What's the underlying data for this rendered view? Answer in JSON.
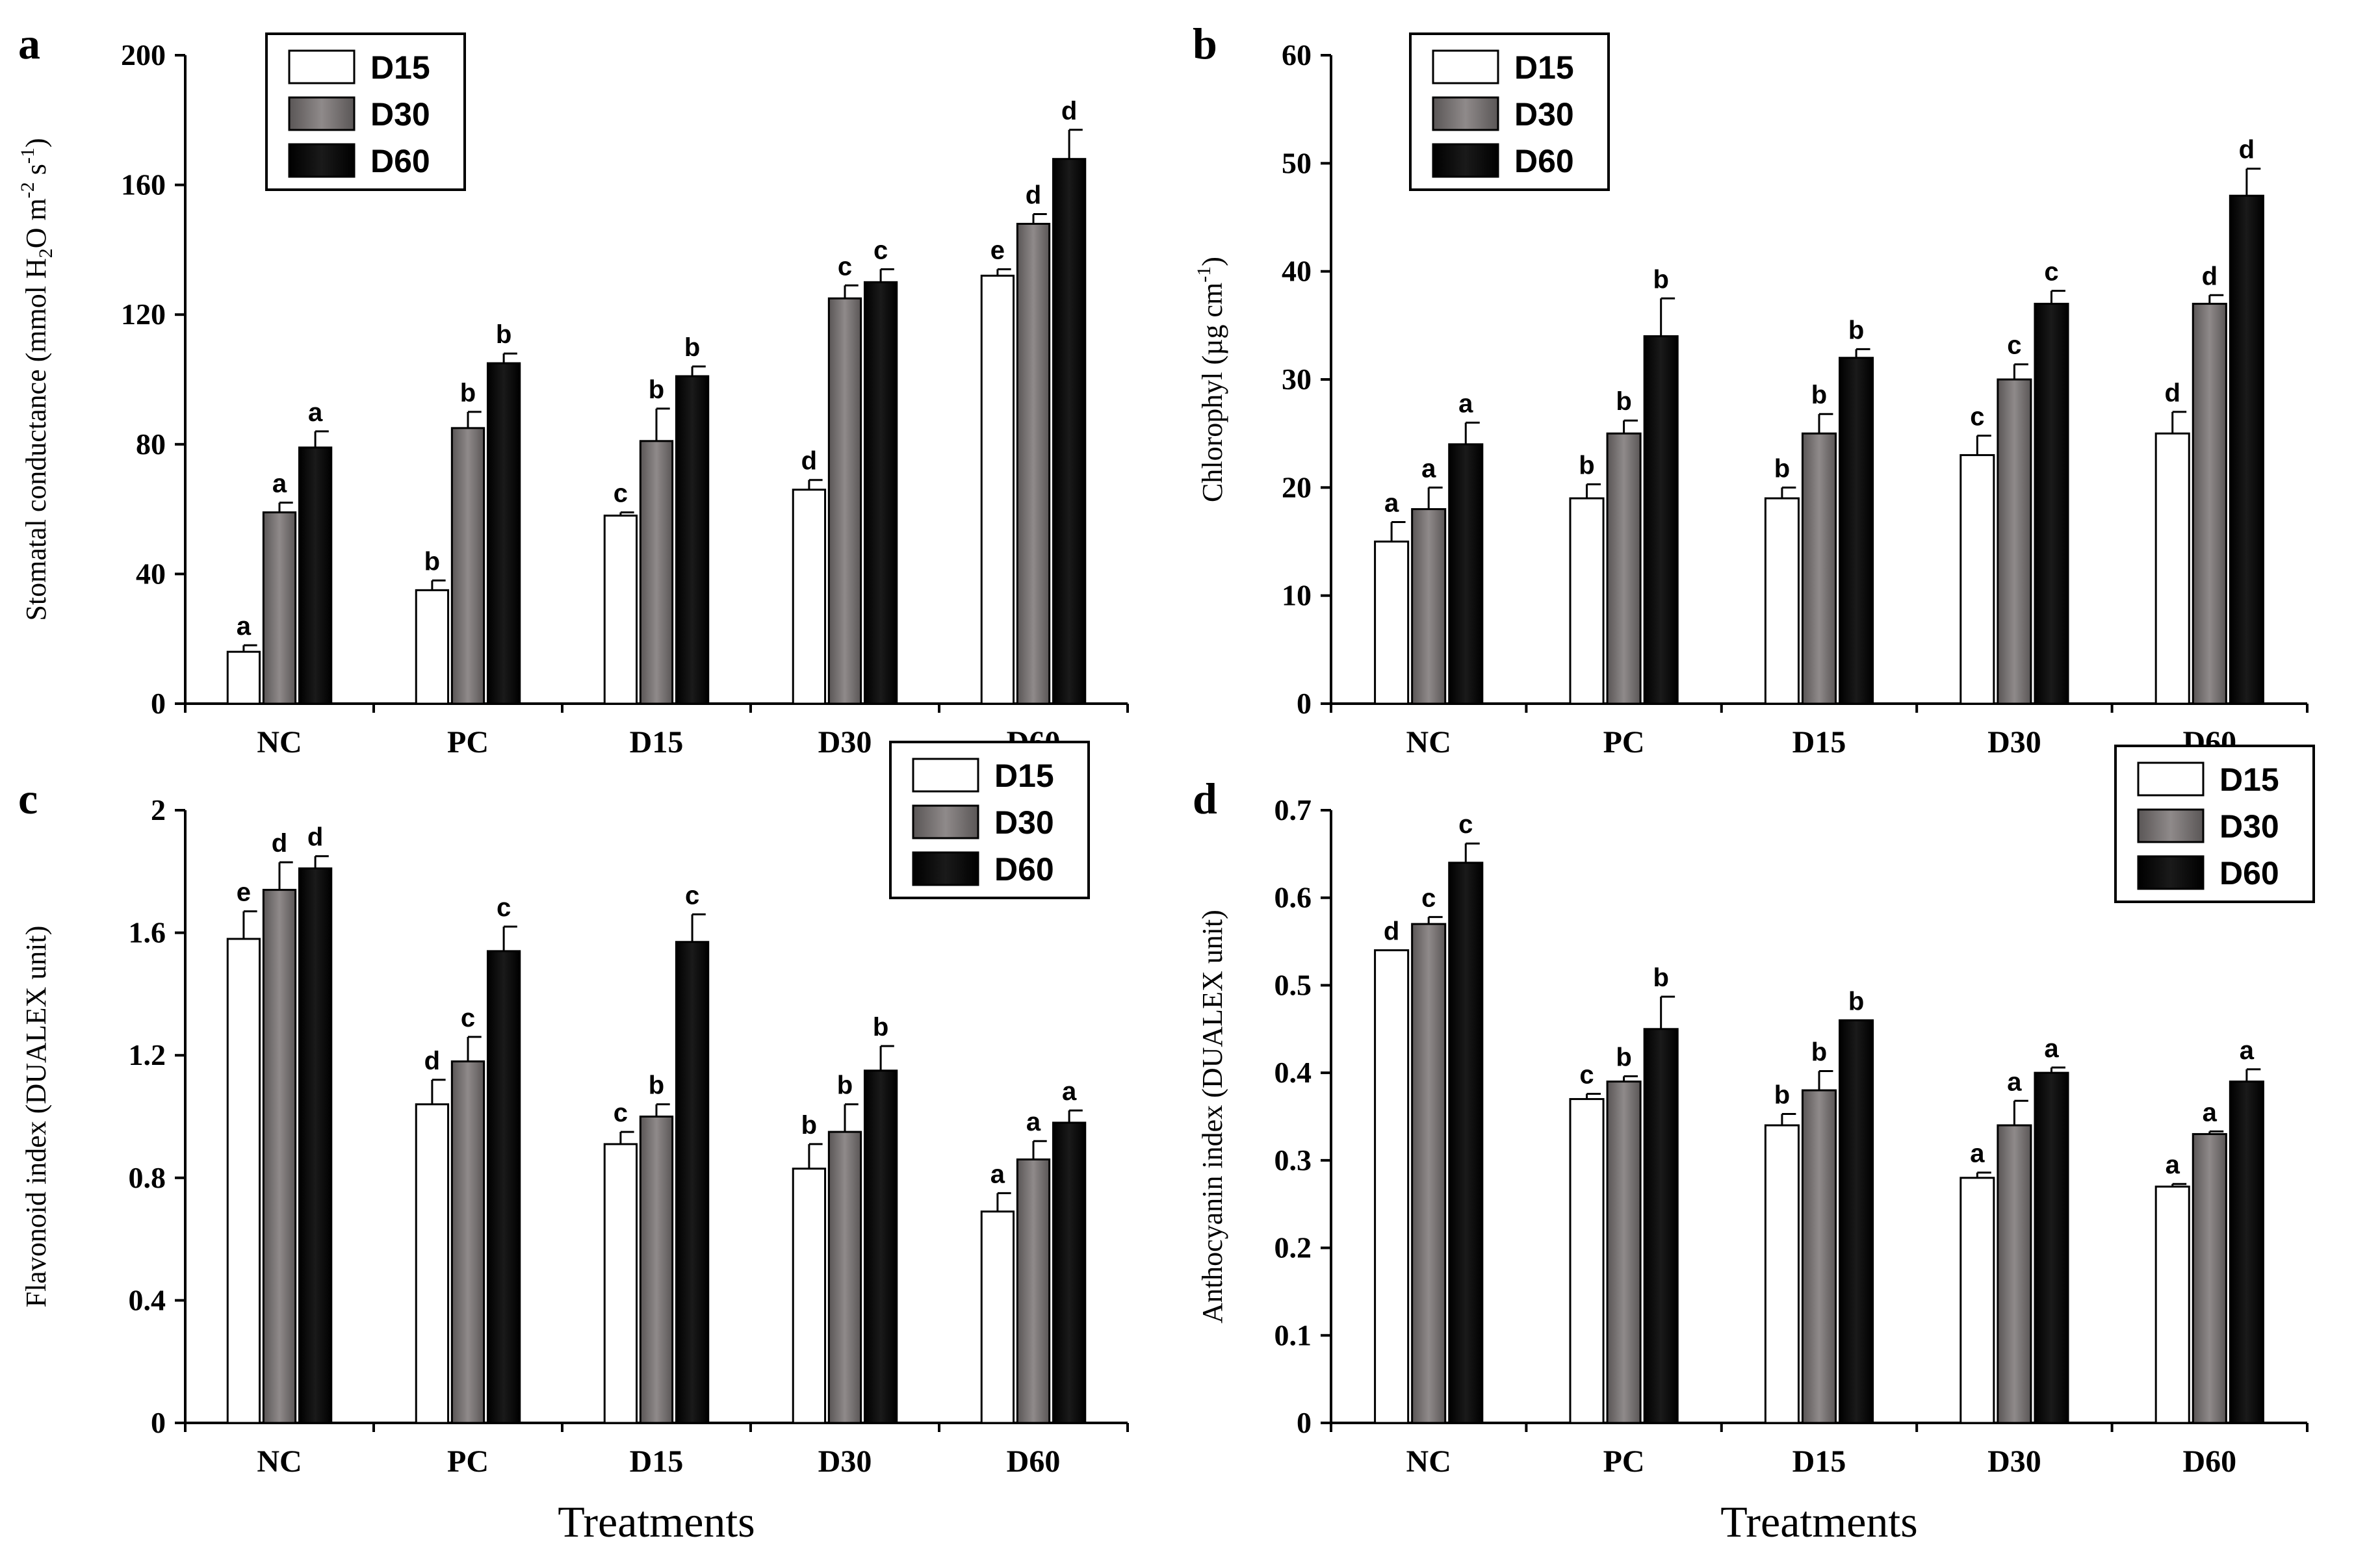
{
  "chart_data": [
    {
      "panel": "a",
      "type": "bar",
      "ylabel": "Stomatal conductance (mmol H2O m-2 s-1)",
      "ylabel_parts": {
        "base": "Stomatal conductance (mmol H",
        "sub": "2",
        "mid": "O m",
        "sup1": "-2",
        "sp": " s",
        "sup2": "-1",
        "end": ")"
      },
      "xlabel": "",
      "ylim": [
        0,
        200
      ],
      "yticks": [
        "0",
        "40",
        "80",
        "120",
        "160",
        "200"
      ],
      "categories": [
        "NC",
        "PC",
        "D15",
        "D30",
        "D60"
      ],
      "series": [
        {
          "name": "D15",
          "values": [
            16,
            35,
            58,
            66,
            132
          ],
          "errors": [
            2,
            3,
            1,
            3,
            2
          ],
          "letters": [
            "a",
            "b",
            "c",
            "d",
            "e"
          ]
        },
        {
          "name": "D30",
          "values": [
            59,
            85,
            81,
            125,
            148
          ],
          "errors": [
            3,
            5,
            10,
            4,
            3
          ],
          "letters": [
            "a",
            "b",
            "b",
            "c",
            "d"
          ]
        },
        {
          "name": "D60",
          "values": [
            79,
            105,
            101,
            130,
            168
          ],
          "errors": [
            5,
            3,
            3,
            4,
            9
          ],
          "letters": [
            "a",
            "b",
            "b",
            "c",
            "d"
          ]
        }
      ],
      "legend": [
        "D15",
        "D30",
        "D60"
      ],
      "legend_position": "top-left"
    },
    {
      "panel": "b",
      "type": "bar",
      "ylabel": "Chlorophyl  (µg cm-1)",
      "ylabel_parts": {
        "base": "Chlorophyl  (µg cm",
        "sup1": "-1",
        "end": ")"
      },
      "xlabel": "",
      "ylim": [
        0,
        60
      ],
      "yticks": [
        "0",
        "10",
        "20",
        "30",
        "40",
        "50",
        "60"
      ],
      "categories": [
        "NC",
        "PC",
        "D15",
        "D30",
        "D60"
      ],
      "series": [
        {
          "name": "D15",
          "values": [
            15,
            19,
            19,
            23,
            25
          ],
          "errors": [
            1.8,
            1.3,
            1.0,
            1.8,
            2.0
          ],
          "letters": [
            "a",
            "b",
            "b",
            "c",
            "d"
          ]
        },
        {
          "name": "D30",
          "values": [
            18,
            25,
            25,
            30,
            37
          ],
          "errors": [
            2.0,
            1.2,
            1.8,
            1.4,
            0.8
          ],
          "letters": [
            "a",
            "b",
            "b",
            "c",
            "d"
          ]
        },
        {
          "name": "D60",
          "values": [
            24,
            34,
            32,
            37,
            47
          ],
          "errors": [
            2.0,
            3.5,
            0.8,
            1.2,
            2.5
          ],
          "letters": [
            "a",
            "b",
            "b",
            "c",
            "d"
          ]
        }
      ],
      "legend": [
        "D15",
        "D30",
        "D60"
      ],
      "legend_position": "top-left"
    },
    {
      "panel": "c",
      "type": "bar",
      "ylabel": "Flavonoid index (DUALEX unit)",
      "xlabel": "Treatments",
      "ylim": [
        0,
        2
      ],
      "yticks": [
        "0",
        "0.4",
        "0.8",
        "1.2",
        "1.6",
        "2"
      ],
      "categories": [
        "NC",
        "PC",
        "D15",
        "D30",
        "D60"
      ],
      "series": [
        {
          "name": "D15",
          "values": [
            1.58,
            1.04,
            0.91,
            0.83,
            0.69
          ],
          "errors": [
            0.09,
            0.08,
            0.04,
            0.08,
            0.06
          ],
          "letters": [
            "e",
            "d",
            "c",
            "b",
            "a"
          ]
        },
        {
          "name": "D30",
          "values": [
            1.74,
            1.18,
            1.0,
            0.95,
            0.86
          ],
          "errors": [
            0.09,
            0.08,
            0.04,
            0.09,
            0.06
          ],
          "letters": [
            "d",
            "c",
            "b",
            "b",
            "a"
          ]
        },
        {
          "name": "D60",
          "values": [
            1.81,
            1.54,
            1.57,
            1.15,
            0.98
          ],
          "errors": [
            0.04,
            0.08,
            0.09,
            0.08,
            0.04
          ],
          "letters": [
            "d",
            "c",
            "c",
            "b",
            "a"
          ]
        }
      ],
      "legend": [
        "D15",
        "D30",
        "D60"
      ],
      "legend_position": "top-right"
    },
    {
      "panel": "d",
      "type": "bar",
      "ylabel": "Anthocyanin index (DUALEX unit)",
      "xlabel": "Treatments",
      "ylim": [
        0,
        0.7
      ],
      "yticks": [
        "0",
        "0.1",
        "0.2",
        "0.3",
        "0.4",
        "0.5",
        "0.6",
        "0.7"
      ],
      "categories": [
        "NC",
        "PC",
        "D15",
        "D30",
        "D60"
      ],
      "series": [
        {
          "name": "D15",
          "values": [
            0.54,
            0.37,
            0.34,
            0.28,
            0.27
          ],
          "errors": [
            0.0,
            0.006,
            0.013,
            0.006,
            0.003
          ],
          "letters": [
            "d",
            "c",
            "b",
            "a",
            "a"
          ]
        },
        {
          "name": "D30",
          "values": [
            0.57,
            0.39,
            0.38,
            0.34,
            0.33
          ],
          "errors": [
            0.008,
            0.006,
            0.022,
            0.028,
            0.003
          ],
          "letters": [
            "c",
            "b",
            "b",
            "a",
            "a"
          ]
        },
        {
          "name": "D60",
          "values": [
            0.64,
            0.45,
            0.46,
            0.4,
            0.39
          ],
          "errors": [
            0.022,
            0.037,
            0.0,
            0.006,
            0.014
          ],
          "letters": [
            "c",
            "b",
            "b",
            "a",
            "a"
          ]
        }
      ],
      "legend": [
        "D15",
        "D30",
        "D60"
      ],
      "legend_position": "top-right"
    }
  ],
  "colors": {
    "D15": "#ffffff",
    "D30": "#7a7474",
    "D60": "#000000"
  }
}
